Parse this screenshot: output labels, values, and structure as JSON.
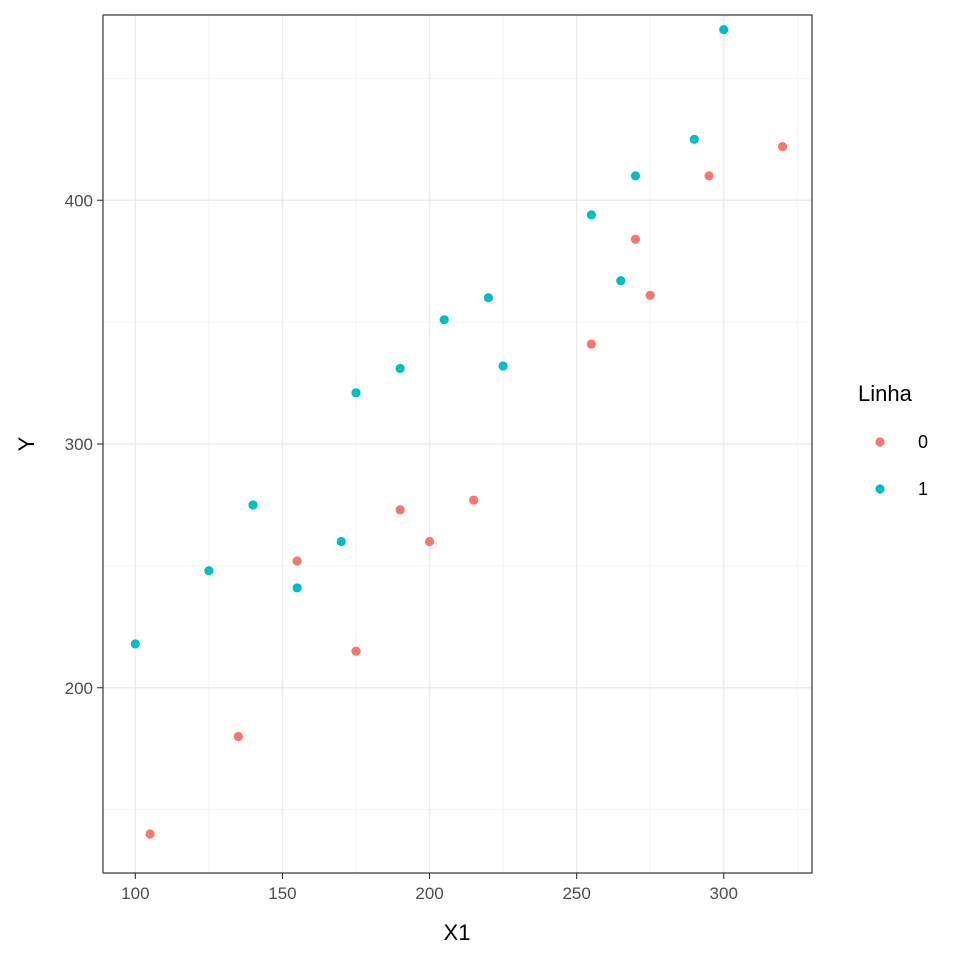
{
  "chart_data": {
    "type": "scatter",
    "title": "",
    "xlabel": "X1",
    "ylabel": "Y",
    "xlim": [
      89,
      330
    ],
    "ylim": [
      124,
      476
    ],
    "x_ticks": [
      100,
      150,
      200,
      250,
      300
    ],
    "y_ticks": [
      200,
      300,
      400
    ],
    "grid": true,
    "legend": {
      "title": "Linha",
      "position": "right"
    },
    "series": [
      {
        "name": "0",
        "color": "#F8766D",
        "points": [
          {
            "x": 105,
            "y": 140
          },
          {
            "x": 135,
            "y": 180
          },
          {
            "x": 155,
            "y": 252
          },
          {
            "x": 175,
            "y": 215
          },
          {
            "x": 190,
            "y": 273
          },
          {
            "x": 200,
            "y": 260
          },
          {
            "x": 215,
            "y": 277
          },
          {
            "x": 255,
            "y": 341
          },
          {
            "x": 270,
            "y": 384
          },
          {
            "x": 275,
            "y": 361
          },
          {
            "x": 295,
            "y": 410
          },
          {
            "x": 320,
            "y": 422
          }
        ]
      },
      {
        "name": "1",
        "color": "#00BFC4",
        "points": [
          {
            "x": 100,
            "y": 218
          },
          {
            "x": 125,
            "y": 248
          },
          {
            "x": 140,
            "y": 275
          },
          {
            "x": 155,
            "y": 241
          },
          {
            "x": 170,
            "y": 260
          },
          {
            "x": 175,
            "y": 321
          },
          {
            "x": 190,
            "y": 331
          },
          {
            "x": 205,
            "y": 351
          },
          {
            "x": 220,
            "y": 360
          },
          {
            "x": 225,
            "y": 332
          },
          {
            "x": 255,
            "y": 394
          },
          {
            "x": 265,
            "y": 367
          },
          {
            "x": 270,
            "y": 410
          },
          {
            "x": 290,
            "y": 425
          },
          {
            "x": 300,
            "y": 470
          }
        ]
      }
    ]
  }
}
